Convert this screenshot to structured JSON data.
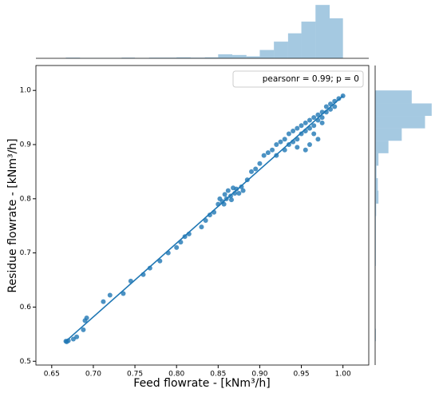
{
  "chart_data": [
    {
      "type": "scatter",
      "xlabel": "Feed flowrate - [kNm³/h]",
      "ylabel": "Residue flowrate - [kNm³/h]",
      "annotation": "pearsonr = 0.99; p = 0",
      "xlim": [
        0.631,
        1.031
      ],
      "ylim": [
        0.493,
        1.046
      ],
      "xticks": [
        0.65,
        {
          "value": 0.7,
          "label": "0.70"
        },
        0.75,
        {
          "value": 0.8,
          "label": "0.80"
        },
        0.85,
        {
          "value": 0.9,
          "label": "0.90"
        },
        0.95,
        {
          "value": 1,
          "label": "1.00"
        }
      ],
      "yticks": [
        0.5,
        0.6,
        0.7,
        0.8,
        0.9,
        {
          "value": 1,
          "label": "1.0"
        }
      ],
      "series": [
        {
          "color": "#1f77b4",
          "x": [
            0.667,
            0.668,
            0.67,
            0.676,
            0.68,
            0.688,
            0.69,
            0.692,
            0.712,
            0.72,
            0.736,
            0.745,
            0.76,
            0.768,
            0.78,
            0.79,
            0.8,
            0.805,
            0.81,
            0.815,
            0.83,
            0.835,
            0.84,
            0.845,
            0.85,
            0.852,
            0.855,
            0.858,
            0.86,
            0.862,
            0.865,
            0.868,
            0.87,
            0.872,
            0.875,
            0.878,
            0.88,
            0.857,
            0.866,
            0.885,
            0.89,
            0.895,
            0.9,
            0.905,
            0.91,
            0.915,
            0.92,
            0.92,
            0.925,
            0.93,
            0.93,
            0.935,
            0.935,
            0.94,
            0.94,
            0.945,
            0.945,
            0.95,
            0.95,
            0.955,
            0.955,
            0.96,
            0.96,
            0.965,
            0.965,
            0.97,
            0.97,
            0.975,
            0.975,
            0.98,
            0.98,
            0.985,
            0.985,
            0.99,
            0.99,
            0.995,
            1.0,
            0.96,
            0.955,
            0.97,
            0.945,
            0.965,
            0.975
          ],
          "values": [
            0.537,
            0.536,
            0.538,
            0.541,
            0.545,
            0.558,
            0.575,
            0.58,
            0.61,
            0.622,
            0.625,
            0.648,
            0.66,
            0.672,
            0.685,
            0.7,
            0.71,
            0.72,
            0.73,
            0.735,
            0.748,
            0.76,
            0.77,
            0.775,
            0.79,
            0.8,
            0.795,
            0.808,
            0.8,
            0.815,
            0.805,
            0.82,
            0.81,
            0.818,
            0.81,
            0.822,
            0.815,
            0.79,
            0.798,
            0.835,
            0.85,
            0.855,
            0.865,
            0.88,
            0.885,
            0.89,
            0.9,
            0.88,
            0.905,
            0.91,
            0.89,
            0.92,
            0.9,
            0.925,
            0.905,
            0.93,
            0.91,
            0.935,
            0.92,
            0.94,
            0.925,
            0.945,
            0.93,
            0.95,
            0.935,
            0.955,
            0.945,
            0.96,
            0.95,
            0.97,
            0.96,
            0.975,
            0.965,
            0.98,
            0.97,
            0.985,
            0.99,
            0.9,
            0.89,
            0.91,
            0.895,
            0.92,
            0.94
          ]
        }
      ],
      "regression": {
        "color": "#1f77b4",
        "x": [
          0.667,
          1.0
        ],
        "values": [
          0.537,
          0.99
        ]
      }
    },
    {
      "type": "histogram",
      "orientation": "vertical",
      "color": "#1f77b4",
      "bins": [
        0.667,
        0.684,
        0.7,
        0.717,
        0.734,
        0.75,
        0.767,
        0.784,
        0.8,
        0.817,
        0.834,
        0.85,
        0.867,
        0.884,
        0.9,
        0.917,
        0.934,
        0.95,
        0.967,
        0.984,
        1.0
      ],
      "values": [
        2,
        1,
        1,
        1,
        2,
        1,
        2,
        2,
        3,
        2,
        3,
        12,
        10,
        6,
        25,
        50,
        75,
        110,
        160,
        120
      ],
      "ylim": [
        0,
        170
      ]
    },
    {
      "type": "histogram",
      "orientation": "horizontal",
      "color": "#1f77b4",
      "bins": [
        0.537,
        0.56,
        0.583,
        0.606,
        0.63,
        0.653,
        0.676,
        0.699,
        0.722,
        0.745,
        0.768,
        0.791,
        0.815,
        0.838,
        0.861,
        0.884,
        0.907,
        0.93,
        0.953,
        0.976,
        1.0
      ],
      "values": [
        2,
        1,
        1,
        1,
        1,
        1,
        2,
        2,
        2,
        2,
        3,
        10,
        8,
        4,
        10,
        40,
        80,
        150,
        170,
        110
      ],
      "xlim": [
        0,
        180
      ]
    }
  ]
}
